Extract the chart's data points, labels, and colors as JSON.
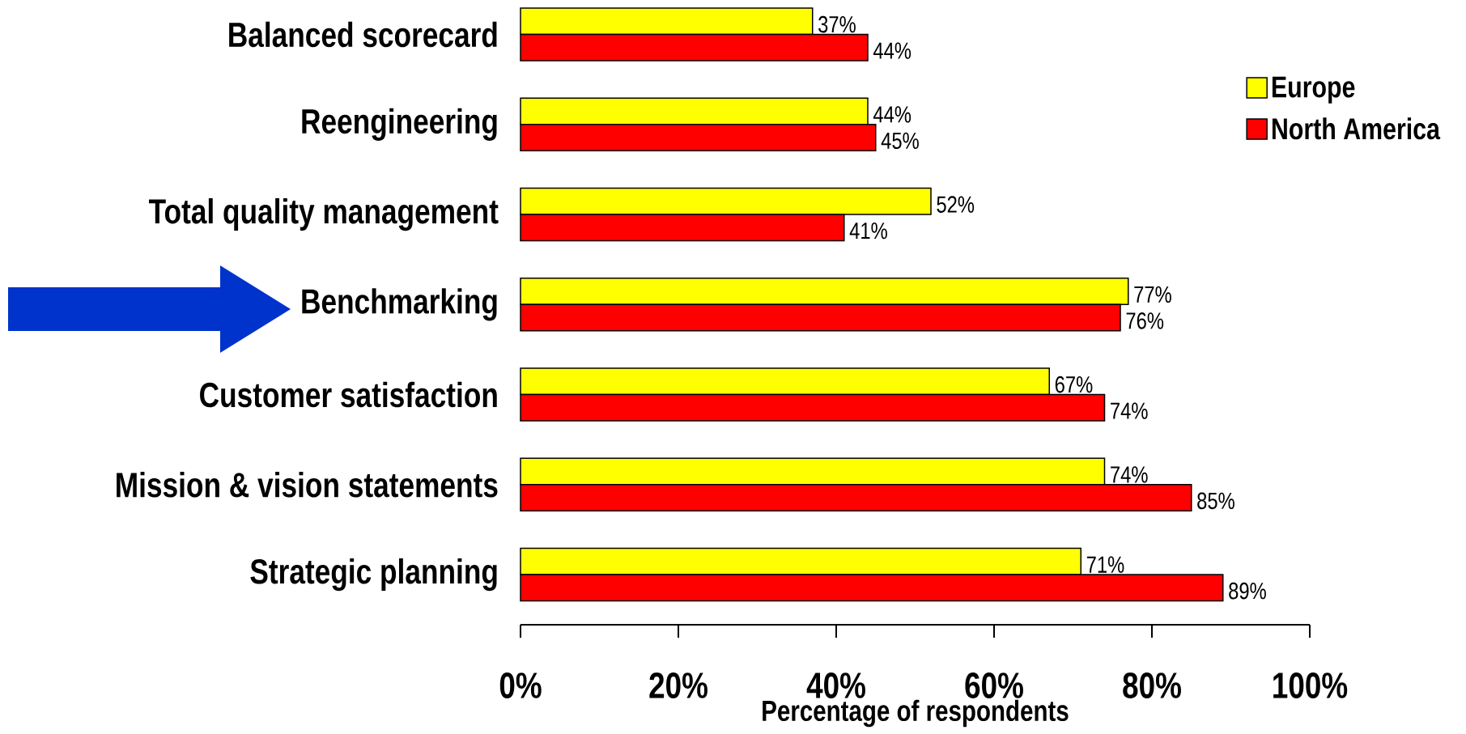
{
  "chart_data": {
    "type": "bar",
    "orientation": "horizontal",
    "categories": [
      "Balanced scorecard",
      "Reengineering",
      "Total quality management",
      "Benchmarking",
      "Customer satisfaction",
      "Mission & vision statements",
      "Strategic planning"
    ],
    "series": [
      {
        "name": "Europe",
        "color": "#ffff00",
        "values": [
          37,
          44,
          52,
          77,
          67,
          74,
          71
        ],
        "value_labels": [
          "37%",
          "44%",
          "52%",
          "77%",
          "67%",
          "74%",
          "71%"
        ]
      },
      {
        "name": "North America",
        "color": "#ff0000",
        "values": [
          44,
          45,
          41,
          76,
          74,
          85,
          89
        ],
        "value_labels": [
          "44%",
          "45%",
          "41%",
          "76%",
          "74%",
          "85%",
          "89%"
        ]
      }
    ],
    "xlabel": "Percentage of respondents",
    "xlim": [
      0,
      100
    ],
    "xticks": [
      {
        "value": 0,
        "label": "0%"
      },
      {
        "value": 20,
        "label": "20%"
      },
      {
        "value": 40,
        "label": "40%"
      },
      {
        "value": 60,
        "label": "60%"
      },
      {
        "value": 80,
        "label": "80%"
      },
      {
        "value": 100,
        "label": "100%"
      }
    ],
    "legend": "top right"
  }
}
